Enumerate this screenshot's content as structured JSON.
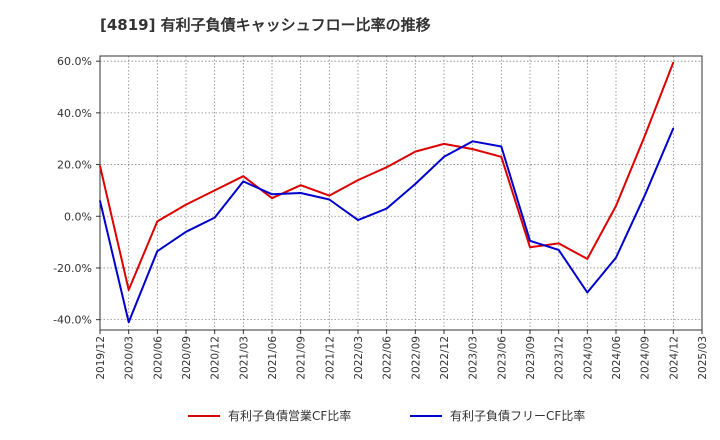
{
  "chart_data": {
    "type": "line",
    "title": "[4819]  有利子負債キャッシュフロー比率の推移",
    "x": [
      "2019/12",
      "2020/03",
      "2020/06",
      "2020/09",
      "2020/12",
      "2021/03",
      "2021/06",
      "2021/09",
      "2021/12",
      "2022/03",
      "2022/06",
      "2022/09",
      "2022/12",
      "2023/03",
      "2023/06",
      "2023/09",
      "2023/12",
      "2024/03",
      "2024/06",
      "2024/09",
      "2024/12",
      "2025/03"
    ],
    "xlim": [
      "2019/12",
      "2025/03"
    ],
    "yticks": [
      60,
      40,
      20,
      0,
      -20,
      -40
    ],
    "ytick_labels": [
      "60.0%",
      "40.0%",
      "20.0%",
      "0.0%",
      "-20.0%",
      "-40.0%"
    ],
    "ylim": [
      -44,
      62
    ],
    "grid": true,
    "legend_position": "bottom",
    "series": [
      {
        "name": "有利子負債営業CF比率",
        "color": "#dd0000",
        "values": [
          19.5,
          -28.5,
          -2,
          4.5,
          10,
          15.5,
          7,
          12,
          8,
          14,
          19,
          25,
          28,
          26,
          23,
          -12,
          -10.5,
          -16.5,
          4,
          31,
          59.5,
          null
        ]
      },
      {
        "name": "有利子負債フリーCF比率",
        "color": "#0000cc",
        "values": [
          6,
          -41,
          -13.5,
          -6,
          -0.5,
          13.5,
          8.5,
          9,
          6.5,
          -1.5,
          3,
          12.5,
          23,
          29,
          27,
          -9.5,
          -13,
          -29.5,
          -16,
          8,
          34,
          null
        ]
      }
    ]
  }
}
